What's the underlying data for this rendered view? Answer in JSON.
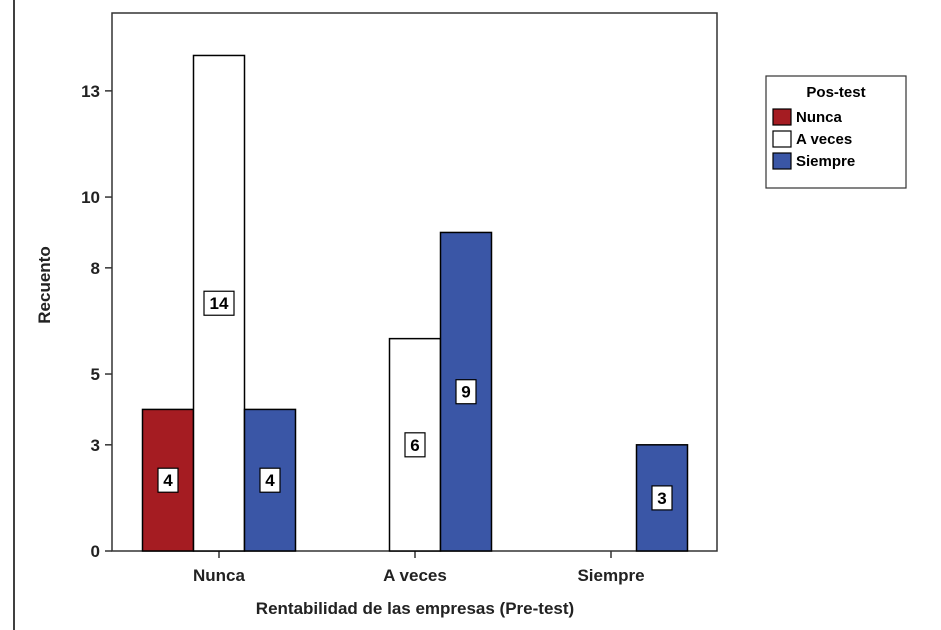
{
  "chart_data": {
    "type": "bar",
    "title": "",
    "xlabel": "Rentabilidad de las empresas (Pre-test)",
    "ylabel": "Recuento",
    "categories": [
      "Nunca",
      "A veces",
      "Siempre"
    ],
    "y_ticks": [
      0,
      3,
      5,
      8,
      10,
      13
    ],
    "ylim": [
      0,
      15.2
    ],
    "legend": {
      "title": "Pos-test",
      "position": "right"
    },
    "grid": false,
    "series": [
      {
        "name": "Nunca",
        "color": "#a51c22",
        "values": [
          4,
          null,
          null
        ]
      },
      {
        "name": "A veces",
        "color": "#ffffff",
        "values": [
          14,
          6,
          null
        ]
      },
      {
        "name": "Siempre",
        "color": "#3a56a6",
        "values": [
          4,
          9,
          3
        ]
      }
    ]
  }
}
